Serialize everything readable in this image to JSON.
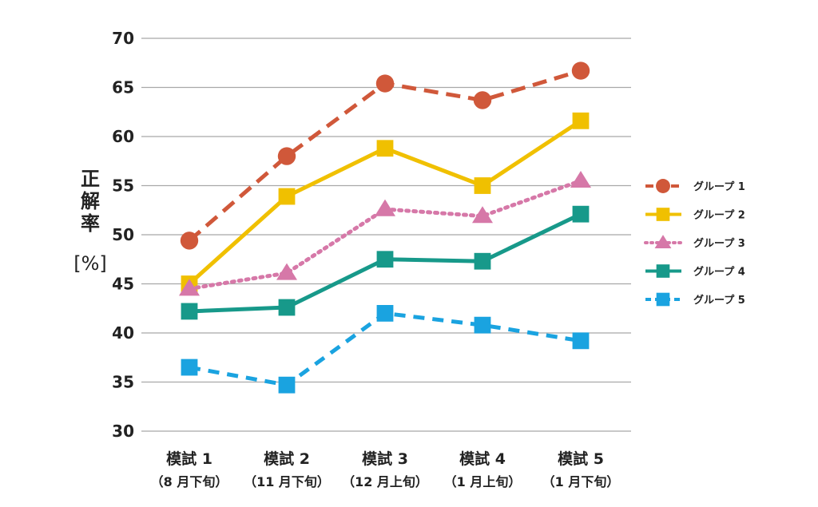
{
  "chart_data": {
    "type": "line",
    "categories": [
      "模試 1",
      "模試 2",
      "模試 3",
      "模試 4",
      "模試 5"
    ],
    "category_sublabels": [
      "（8 月下旬）",
      "（11 月下旬）",
      "（12 月上旬）",
      "（1 月上旬）",
      "（1 月下旬）"
    ],
    "ylabel": "正解率",
    "yunit": "[%]",
    "ylim": [
      30,
      70
    ],
    "yticks": [
      "30",
      "35",
      "40",
      "45",
      "50",
      "55",
      "60",
      "65",
      "70"
    ],
    "grid": true,
    "legend_position": "right",
    "series": [
      {
        "name": "グループ 1",
        "values": [
          49.4,
          58.0,
          65.4,
          63.7,
          66.7
        ],
        "color": "#d0583a",
        "marker": "circle",
        "dash": "long-dash"
      },
      {
        "name": "グループ 2",
        "values": [
          45.0,
          53.9,
          58.8,
          55.0,
          61.6
        ],
        "color": "#f0c000",
        "marker": "square",
        "dash": "solid"
      },
      {
        "name": "グループ 3",
        "values": [
          44.5,
          46.1,
          52.6,
          51.9,
          55.5
        ],
        "color": "#d678a8",
        "marker": "triangle",
        "dash": "dotted"
      },
      {
        "name": "グループ 4",
        "values": [
          42.2,
          42.6,
          47.5,
          47.3,
          52.1
        ],
        "color": "#17998a",
        "marker": "square",
        "dash": "solid"
      },
      {
        "name": "グループ 5",
        "values": [
          36.5,
          34.7,
          42.0,
          40.8,
          39.2
        ],
        "color": "#1aa3e0",
        "marker": "square",
        "dash": "dashed"
      }
    ]
  }
}
